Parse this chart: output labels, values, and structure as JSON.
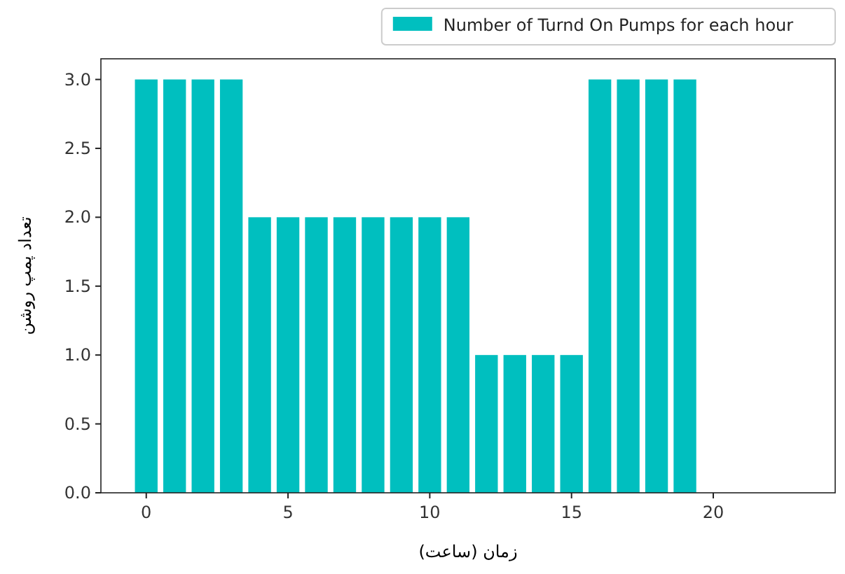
{
  "chart_data": {
    "type": "bar",
    "xlabel": "زمان (ساعت)",
    "ylabel": "تعداد پمپ روشن",
    "x": [
      0,
      1,
      2,
      3,
      4,
      5,
      6,
      7,
      8,
      9,
      10,
      11,
      12,
      13,
      14,
      15,
      16,
      17,
      18,
      19
    ],
    "series": [
      {
        "name": "Number of Turnd On Pumps for each hour",
        "color": "#00bfbf",
        "values": [
          3,
          3,
          3,
          3,
          2,
          2,
          2,
          2,
          2,
          2,
          2,
          2,
          1,
          1,
          1,
          1,
          3,
          3,
          3,
          3
        ]
      }
    ],
    "xlim": [
      -1.6,
      24.3
    ],
    "xticks": [
      0,
      5,
      10,
      15,
      20
    ],
    "ylim": [
      0,
      3.15
    ],
    "yticks": [
      {
        "value": 0,
        "label": "0.0"
      },
      0.5,
      {
        "value": 1,
        "label": "1.0"
      },
      1.5,
      {
        "value": 2,
        "label": "2.0"
      },
      2.5,
      {
        "value": 3,
        "label": "3.0"
      }
    ],
    "legend": "top right",
    "grid": false
  }
}
